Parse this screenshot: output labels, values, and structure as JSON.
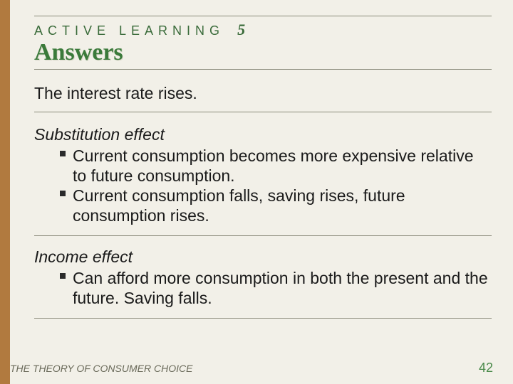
{
  "colors": {
    "background": "#f2f0e8",
    "left_bar": "#b17a3f",
    "rule": "#8a8a7a",
    "kicker": "#3a6b3a",
    "title": "#3a7a3a",
    "body_text": "#1a1a1a",
    "footer_text": "#6a6a5a",
    "page_num": "#4a8a4a",
    "bullet": "#2a2a2a"
  },
  "header": {
    "kicker": "ACTIVE LEARNING",
    "number": "5",
    "title": "Answers"
  },
  "intro": "The interest rate rises.",
  "sections": [
    {
      "heading": "Substitution effect",
      "bullets": [
        "Current consumption becomes more expensive relative to future consumption.",
        "Current consumption falls, saving rises, future consumption rises."
      ]
    },
    {
      "heading": "Income effect",
      "bullets": [
        "Can afford more consumption in both the present and the future.  Saving falls."
      ]
    }
  ],
  "footer": {
    "left": "THE THEORY OF CONSUMER CHOICE",
    "page": "42"
  }
}
